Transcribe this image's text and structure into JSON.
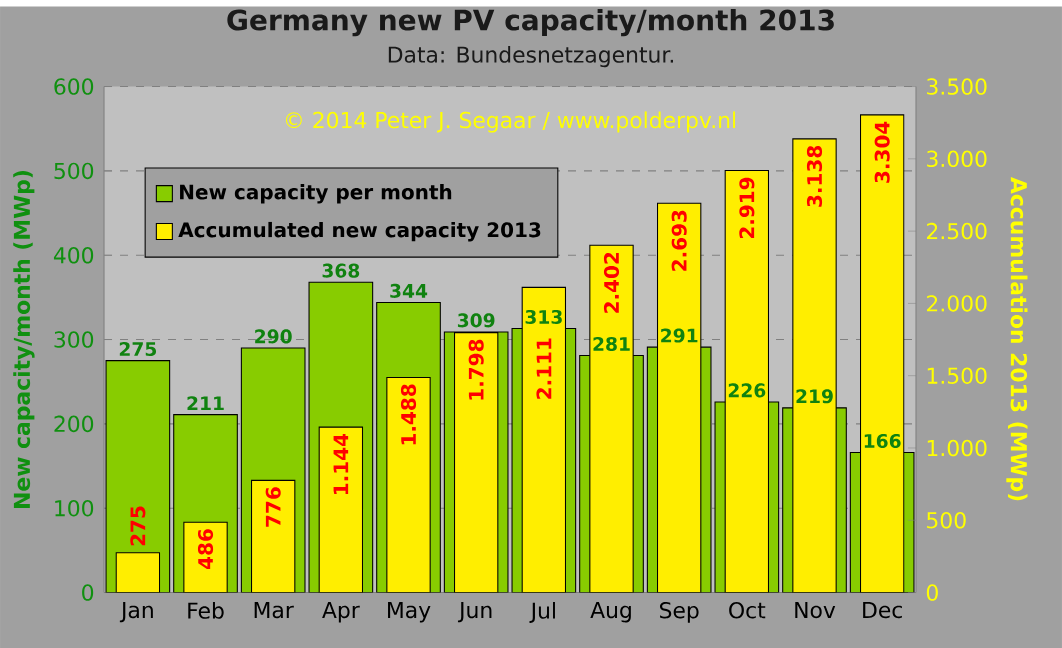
{
  "chart_data": {
    "type": "bar",
    "title": "Germany new PV capacity/month 2013",
    "subtitle": "Data: Bundesnetzagentur.",
    "ylabel": "New capacity/month (MWp)",
    "y2label": "Accumulation 2013 (MWp)",
    "annotations": [
      "© 2014 Peter J. Segaar / www.polderpv.nl"
    ],
    "categories": [
      "Jan",
      "Feb",
      "Mar",
      "Apr",
      "May",
      "Jun",
      "Jul",
      "Aug",
      "Sep",
      "Oct",
      "Nov",
      "Dec"
    ],
    "series": [
      {
        "name": "New capacity per month",
        "color": "#88cc00",
        "values": [
          275,
          211,
          290,
          368,
          344,
          309,
          313,
          281,
          291,
          226,
          219,
          166
        ],
        "value_labels": [
          "275",
          "211",
          "290",
          "368",
          "344",
          "309",
          "313",
          "281",
          "291",
          "226",
          "219",
          "166"
        ]
      },
      {
        "name": "Accumulated new capacity 2013",
        "color": "#ffee00",
        "axis": "y2",
        "values": [
          275,
          486,
          776,
          1144,
          1488,
          1798,
          2111,
          2402,
          2693,
          2919,
          3138,
          3304
        ],
        "value_labels": [
          "275",
          "486",
          "776",
          "1.144",
          "1.488",
          "1.798",
          "2.111",
          "2.402",
          "2.693",
          "2.919",
          "3.138",
          "3.304"
        ]
      }
    ],
    "ylim": [
      0,
      600
    ],
    "yticks": [
      0,
      100,
      200,
      300,
      400,
      500,
      600
    ],
    "y2lim": [
      0,
      3500
    ],
    "y2ticks": [
      {
        "value": 0,
        "label": "0"
      },
      {
        "value": 500,
        "label": "500"
      },
      {
        "value": 1000,
        "label": "1.000"
      },
      {
        "value": 1500,
        "label": "1.500"
      },
      {
        "value": 2000,
        "label": "2.000"
      },
      {
        "value": 2500,
        "label": "2.500"
      },
      {
        "value": 3000,
        "label": "3.000"
      },
      {
        "value": 3500,
        "label": "3.500"
      }
    ],
    "grid": "y",
    "legend": "top left"
  }
}
